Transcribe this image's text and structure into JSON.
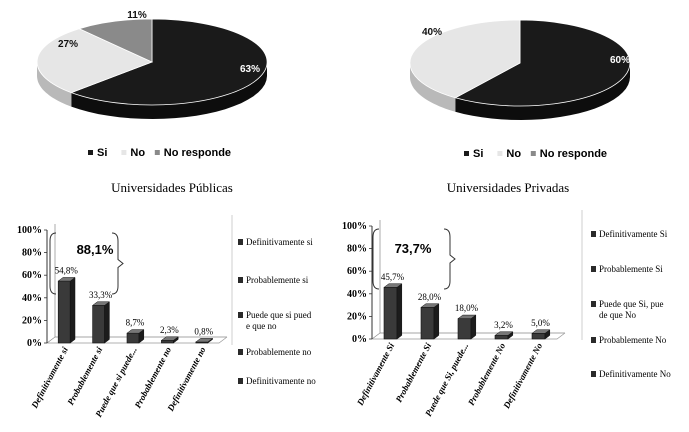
{
  "colors": {
    "dark": "#1a1a1a",
    "light": "#e6e6e6",
    "gray": "#8a8a8a",
    "barFront": "#3a3a3a",
    "barSide": "#1c1c1c",
    "barTop": "#777777"
  },
  "chart_data": [
    {
      "type": "pie",
      "categories": [
        "Si",
        "No",
        "No responde"
      ],
      "values": [
        63,
        27,
        11
      ],
      "labels": [
        "63%",
        "27%",
        "11%"
      ],
      "legend": [
        "Si",
        "No",
        "No responde"
      ],
      "legend_position": "bottom"
    },
    {
      "type": "pie",
      "categories": [
        "Si",
        "No"
      ],
      "values": [
        60,
        40
      ],
      "labels": [
        "60%",
        "40%"
      ],
      "legend": [
        "Si",
        "No",
        "No responde"
      ],
      "legend_position": "bottom"
    },
    {
      "type": "bar",
      "title": "Universidades Públicas",
      "categories": [
        "Definitivamente si",
        "Probablemente si",
        "Puede que si puede...",
        "Probablemente no",
        "Definitivamente no"
      ],
      "values": [
        54.8,
        33.3,
        8.7,
        2.3,
        0.8
      ],
      "labels": [
        "54,8%",
        "33,3%",
        "8,7%",
        "2,3%",
        "0,8%"
      ],
      "ylim": [
        0,
        100
      ],
      "yticks": [
        "0%",
        "20%",
        "40%",
        "60%",
        "80%",
        "100%"
      ],
      "annotation": "88,1%",
      "legend": [
        "Definitivamente si",
        "Probablemente si",
        "Puede que si puede que no",
        "Probablemente no",
        "Definitivamente no"
      ],
      "legend_position": "right"
    },
    {
      "type": "bar",
      "title": "Universidades Privadas",
      "categories": [
        "Definitivamente Si",
        "Probablemente Si",
        "Puede que Si, puede...",
        "Probablemente No",
        "Definitivamente No"
      ],
      "values": [
        45.7,
        28.0,
        18.0,
        3.2,
        5.0
      ],
      "labels": [
        "45,7%",
        "28,0%",
        "18,0%",
        "3,2%",
        "5,0%"
      ],
      "ylim": [
        0,
        100
      ],
      "yticks": [
        "0%",
        "20%",
        "40%",
        "60%",
        "80%",
        "100%"
      ],
      "annotation": "73,7%",
      "legend": [
        "Definitivamente Si",
        "Probablemente Si",
        "Puede que Si, puede que No",
        "Probablemente No",
        "Definitivamente No"
      ],
      "legend_position": "right"
    }
  ]
}
